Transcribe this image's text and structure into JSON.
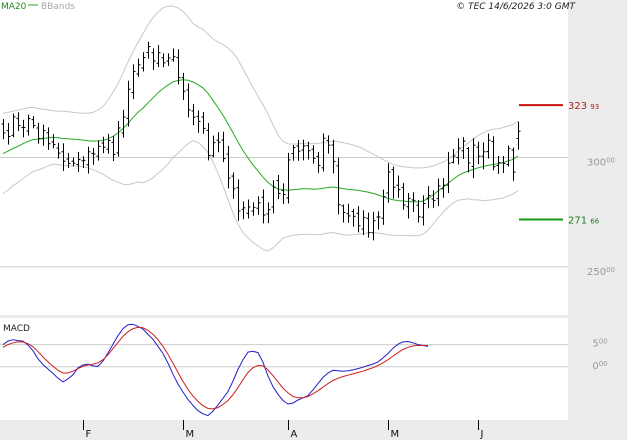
{
  "header": {
    "ma_label": "MA20",
    "bb_label": "BBands",
    "copyright": "© TEC 14/6/2026 3:0 GMT"
  },
  "colors": {
    "ma": "#22aa22",
    "bbands": "#c8c8c8",
    "candles": "#000000",
    "macd": "#1f1fcc",
    "signal": "#cc1f1f",
    "resistance": "#cc1111",
    "support": "#119911",
    "grid": "#cccccc",
    "axis_panel": "#ececec"
  },
  "levels": {
    "resistance": {
      "int": "323",
      "dec": "93",
      "value": 323.93
    },
    "support": {
      "int": "271",
      "dec": "66",
      "value": 271.66
    }
  },
  "chart_data": {
    "type": "ohlc",
    "price_axis": {
      "ticks": [
        {
          "label": "300",
          "dec": "00",
          "value": 300
        },
        {
          "label": "250",
          "dec": "00",
          "value": 250
        }
      ],
      "ylim": [
        228,
        372
      ]
    },
    "macd_axis": {
      "ticks": [
        {
          "label": "5",
          "dec": "00",
          "value": 5
        },
        {
          "label": "0",
          "dec": "00",
          "value": 0
        }
      ],
      "ylim": [
        -12,
        11
      ]
    },
    "x_labels": [
      {
        "label": "F",
        "index": 16
      },
      {
        "label": "M",
        "index": 36
      },
      {
        "label": "A",
        "index": 57
      },
      {
        "label": "M",
        "index": 77
      },
      {
        "label": "J",
        "index": 95
      }
    ],
    "num_bars": 104,
    "close": [
      311.2,
      309.6,
      318.6,
      314.6,
      313.7,
      317.8,
      314.6,
      308.7,
      312.3,
      306.3,
      305.9,
      302.0,
      298.3,
      297.3,
      297.4,
      299.1,
      298.7,
      302.6,
      301.6,
      305.1,
      304.7,
      307.8,
      301.4,
      313.5,
      318.5,
      331.2,
      339.3,
      342.4,
      345.7,
      350.7,
      344.1,
      347.9,
      343.3,
      345.5,
      346.1,
      336.5,
      330.3,
      321.8,
      318.4,
      316.5,
      313.3,
      300.9,
      306.8,
      307.0,
      299.5,
      290.6,
      285.7,
      275.5,
      277.0,
      277.4,
      277.2,
      279.3,
      273.7,
      276.2,
      286.5,
      283.6,
      283.1,
      298.9,
      304.5,
      302.9,
      305.3,
      303.1,
      299.6,
      296.3,
      308.8,
      305.6,
      298.2,
      278.4,
      274.9,
      273.3,
      273.1,
      268.8,
      272.5,
      265.7,
      271.1,
      272.8,
      282.1,
      293.4,
      286.4,
      285.3,
      278.3,
      281.3,
      280.4,
      272.9,
      279.0,
      282.6,
      280.3,
      287.0,
      287.3,
      297.4,
      300.7,
      304.3,
      307.5,
      297.5,
      305.6,
      300.6,
      302.6,
      307.9,
      295.8,
      297.7,
      297.3,
      304.2,
      293.3,
      312.0
    ],
    "open": [
      315.3,
      312.3,
      310.1,
      317.9,
      313.7,
      312.1,
      317.3,
      313.5,
      308.8,
      311.3,
      307.1,
      304.3,
      302.6,
      299.3,
      298.3,
      296.8,
      298.5,
      296.7,
      301.9,
      300.6,
      306.6,
      303.8,
      306.9,
      302.1,
      311.2,
      317.9,
      329.7,
      338.2,
      340.9,
      348.0,
      347.9,
      343.1,
      345.6,
      344.1,
      344.7,
      345.7,
      336.5,
      330.9,
      321.3,
      318.8,
      318.5,
      312.4,
      300.8,
      307.9,
      308.0,
      301.6,
      291.5,
      286.2,
      276.3,
      274.5,
      275.5,
      276.8,
      281.8,
      274.2,
      277.4,
      289.5,
      285.0,
      281.5,
      301.8,
      305.3,
      303.4,
      305.4,
      303.8,
      300.5,
      295.3,
      307.8,
      305.7,
      296.2,
      277.9,
      274.3,
      275.3,
      274.5,
      267.3,
      272.2,
      265.6,
      272.8,
      272.2,
      283.8,
      294.5,
      287.3,
      286.3,
      277.5,
      280.6,
      278.2,
      272.7,
      281.4,
      281.0,
      281.2,
      285.7,
      287.4,
      297.7,
      300.0,
      303.1,
      304.1,
      295.9,
      304.7,
      300.6,
      302.7,
      307.3,
      296.3,
      297.5,
      296.8,
      303.4,
      308.7
    ],
    "high": [
      317.6,
      315.8,
      320.1,
      320.7,
      317.2,
      319.6,
      318.9,
      315.9,
      315.1,
      313.8,
      310.7,
      306.7,
      306.5,
      302.0,
      300.0,
      302.6,
      300.6,
      305.0,
      304.3,
      307.8,
      309.5,
      310.8,
      309.7,
      316.7,
      321.8,
      335.1,
      342.6,
      345.2,
      348.1,
      352.9,
      349.9,
      351.4,
      347.6,
      347.6,
      349.9,
      349.5,
      338.7,
      333.9,
      324.5,
      321.5,
      320.8,
      315.8,
      310.0,
      311.5,
      311.8,
      305.3,
      293.1,
      290.0,
      279.9,
      280.8,
      279.5,
      282.3,
      285.4,
      279.5,
      289.6,
      292.0,
      288.2,
      302.1,
      305.7,
      308.0,
      308.2,
      307.2,
      305.6,
      302.5,
      311.0,
      310.1,
      308.1,
      300.0,
      278.5,
      278.9,
      276.6,
      277.7,
      275.9,
      274.8,
      275.2,
      275.4,
      285.3,
      297.4,
      295.9,
      291.8,
      288.4,
      283.8,
      284.1,
      280.6,
      282.7,
      286.9,
      285.0,
      290.4,
      290.6,
      302.6,
      303.9,
      308.8,
      309.3,
      304.8,
      308.8,
      307.2,
      306.9,
      311.0,
      309.7,
      300.7,
      300.7,
      305.5,
      304.5,
      316.4
    ],
    "low": [
      308.3,
      305.9,
      309.2,
      312.1,
      309.2,
      310.0,
      313.4,
      306.3,
      305.4,
      303.5,
      304.2,
      299.5,
      293.9,
      295.2,
      295.9,
      293.3,
      295.2,
      292.7,
      296.7,
      298.6,
      302.0,
      301.8,
      298.4,
      300.4,
      309.1,
      314.2,
      326.7,
      336.9,
      339.3,
      345.2,
      340.0,
      341.4,
      341.2,
      341.9,
      343.7,
      333.4,
      326.3,
      318.4,
      314.8,
      311.3,
      310.8,
      298.7,
      300.1,
      302.4,
      297.9,
      285.9,
      281.1,
      271.1,
      271.8,
      272.1,
      273.4,
      273.8,
      269.9,
      270.0,
      274.5,
      281.0,
      278.8,
      279.0,
      298.5,
      298.5,
      298.7,
      299.1,
      297.2,
      293.0,
      293.6,
      301.8,
      292.7,
      274.0,
      270.3,
      270.2,
      268.4,
      265.8,
      264.5,
      263.4,
      262.1,
      267.1,
      269.2,
      279.3,
      281.2,
      281.6,
      276.1,
      272.1,
      275.1,
      270.3,
      268.9,
      276.8,
      277.0,
      277.9,
      281.6,
      283.8,
      297.4,
      296.8,
      299.3,
      293.2,
      290.6,
      296.9,
      294.6,
      299.5,
      294.1,
      292.5,
      292.9,
      295.9,
      289.3,
      303.6
    ],
    "ma20": [
      301.8,
      302.9,
      304.1,
      305.1,
      306.3,
      307.4,
      308.2,
      308.4,
      308.6,
      309.0,
      309.2,
      309.0,
      308.7,
      308.6,
      308.4,
      308.2,
      308.0,
      307.7,
      307.5,
      307.6,
      307.8,
      308.6,
      309.7,
      311.2,
      313.2,
      315.6,
      318.2,
      320.7,
      322.6,
      325.0,
      327.3,
      329.6,
      331.5,
      333.1,
      334.6,
      335.2,
      335.5,
      335.3,
      334.5,
      333.3,
      331.8,
      329.3,
      326.1,
      322.8,
      319.3,
      315.4,
      311.3,
      307.1,
      303.2,
      299.8,
      296.6,
      293.8,
      291.0,
      288.6,
      286.8,
      285.6,
      285.2,
      285.1,
      285.3,
      285.5,
      285.7,
      285.7,
      285.5,
      285.6,
      285.9,
      286.3,
      286.5,
      286.2,
      285.8,
      285.4,
      285.2,
      285.0,
      284.6,
      284.2,
      283.6,
      282.9,
      282.1,
      281.3,
      280.7,
      280.3,
      280.1,
      279.9,
      279.8,
      279.7,
      280.1,
      281.2,
      282.8,
      284.7,
      286.4,
      288.2,
      290.0,
      291.7,
      292.9,
      293.8,
      294.5,
      295.3,
      295.8,
      296.4,
      296.8,
      297.1,
      297.6,
      298.4,
      299.2,
      300.7
    ],
    "bb_upper": [
      320.2,
      320.7,
      321.1,
      321.6,
      322.2,
      322.8,
      322.9,
      322.5,
      322.1,
      321.8,
      321.4,
      321.2,
      321.1,
      320.9,
      320.7,
      320.4,
      320.2,
      320.2,
      320.6,
      321.7,
      323.3,
      326.3,
      329.8,
      333.7,
      338.6,
      343.6,
      348.3,
      352.6,
      356.7,
      360.6,
      363.9,
      366.4,
      368.4,
      369.2,
      369.2,
      368.4,
      366.8,
      364.3,
      361.3,
      359.7,
      358.6,
      356.4,
      354.2,
      352.8,
      351.6,
      350.1,
      348.0,
      344.7,
      340.6,
      336.3,
      332.0,
      328.0,
      324.1,
      319.9,
      314.9,
      310.3,
      307.3,
      306.3,
      306.1,
      306.3,
      306.5,
      306.5,
      306.3,
      306.4,
      306.8,
      307.1,
      307.3,
      307.2,
      306.8,
      306.3,
      305.7,
      305.0,
      304.0,
      302.8,
      301.6,
      300.3,
      299.1,
      297.9,
      296.9,
      296.2,
      295.8,
      295.6,
      295.3,
      295.2,
      295.3,
      295.6,
      296.1,
      297.0,
      297.9,
      299.2,
      300.8,
      302.9,
      305.0,
      306.5,
      308.3,
      310.0,
      311.3,
      312.3,
      312.9,
      313.1,
      313.7,
      314.4,
      315.1,
      316.6
    ],
    "bb_lower": [
      283.4,
      285.1,
      287.1,
      288.6,
      290.4,
      292.0,
      293.5,
      294.3,
      295.1,
      296.2,
      297.0,
      296.8,
      296.3,
      296.3,
      296.1,
      296.0,
      295.8,
      295.2,
      294.4,
      293.5,
      292.3,
      290.9,
      289.6,
      288.7,
      287.8,
      287.6,
      288.1,
      288.8,
      288.5,
      289.4,
      290.7,
      292.8,
      294.6,
      297.0,
      300.0,
      302.0,
      304.2,
      306.3,
      307.7,
      306.9,
      305.0,
      302.2,
      298.0,
      292.8,
      287.0,
      280.7,
      274.6,
      269.5,
      265.8,
      263.3,
      261.2,
      259.6,
      257.9,
      257.3,
      258.7,
      260.9,
      263.1,
      263.9,
      264.5,
      264.7,
      264.9,
      264.9,
      264.7,
      264.8,
      265.0,
      265.5,
      265.7,
      265.2,
      264.8,
      264.5,
      264.7,
      265.0,
      265.2,
      265.6,
      265.6,
      265.5,
      265.1,
      264.7,
      264.5,
      264.4,
      264.4,
      264.2,
      264.3,
      264.2,
      264.9,
      266.8,
      269.5,
      272.4,
      274.9,
      277.2,
      279.2,
      280.5,
      280.8,
      281.1,
      280.7,
      280.6,
      280.3,
      280.5,
      280.7,
      281.1,
      281.5,
      282.4,
      283.3,
      284.8
    ],
    "macd": [
      5.0,
      5.8,
      6.1,
      5.9,
      5.8,
      4.9,
      3.6,
      1.8,
      0.5,
      -0.5,
      -1.5,
      -2.6,
      -3.4,
      -2.7,
      -1.8,
      -0.2,
      0.4,
      0.6,
      0.2,
      0.1,
      1.3,
      3.1,
      5.1,
      7.0,
      8.6,
      9.5,
      9.6,
      9.1,
      8.5,
      7.3,
      6.2,
      4.6,
      3.0,
      0.8,
      -1.7,
      -3.9,
      -5.7,
      -7.4,
      -8.7,
      -9.9,
      -10.6,
      -11.0,
      -10.0,
      -8.6,
      -7.1,
      -5.6,
      -3.2,
      -0.6,
      1.6,
      3.3,
      3.5,
      3.2,
      1.0,
      -2.1,
      -4.5,
      -6.2,
      -7.6,
      -8.4,
      -8.2,
      -7.5,
      -7.0,
      -6.5,
      -5.2,
      -3.8,
      -2.4,
      -1.4,
      -0.8,
      -0.9,
      -1.0,
      -0.9,
      -0.7,
      -0.4,
      -0.1,
      0.3,
      0.6,
      1.1,
      2.0,
      3.0,
      4.2,
      5.1,
      5.6,
      5.7,
      5.4,
      5.0,
      4.8,
      4.6
    ],
    "signal": [
      4.4,
      5.0,
      5.4,
      5.6,
      5.6,
      5.2,
      4.5,
      3.4,
      2.2,
      1.1,
      0.1,
      -0.8,
      -1.4,
      -1.4,
      -1.0,
      -0.4,
      0.1,
      0.4,
      0.6,
      0.9,
      1.6,
      2.7,
      4.1,
      5.5,
      6.9,
      7.9,
      8.6,
      8.9,
      8.8,
      8.2,
      7.3,
      6.1,
      4.6,
      2.8,
      0.8,
      -1.3,
      -3.3,
      -5.1,
      -6.6,
      -7.8,
      -8.8,
      -9.4,
      -9.5,
      -9.2,
      -8.5,
      -7.6,
      -6.3,
      -4.7,
      -2.9,
      -1.3,
      -0.2,
      0.3,
      0.2,
      -0.7,
      -2.0,
      -3.4,
      -4.8,
      -5.9,
      -6.7,
      -7.0,
      -7.0,
      -6.7,
      -6.1,
      -5.4,
      -4.6,
      -3.8,
      -3.1,
      -2.6,
      -2.2,
      -1.9,
      -1.6,
      -1.3,
      -1.0,
      -0.6,
      -0.2,
      0.3,
      0.9,
      1.6,
      2.4,
      3.2,
      3.9,
      4.4,
      4.7,
      4.8,
      4.8,
      4.8
    ]
  }
}
